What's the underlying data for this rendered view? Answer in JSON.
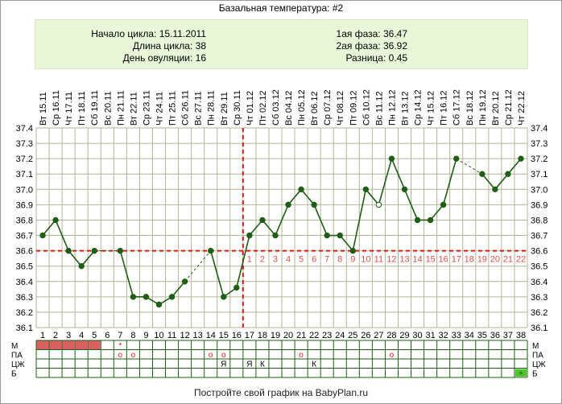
{
  "title": "Базальная температура: #2",
  "info": {
    "cycle_start": "Начало цикла: 15.11.2011",
    "cycle_length": "Длина цикла: 38",
    "ovulation_day": "День овуляции: 16",
    "phase1": "1ая фаза: 36.47",
    "phase2": "2ая фаза: 36.92",
    "difference": "Разница: 0.45"
  },
  "footer": "Постройте свой график на BabyPlan.ru",
  "colors": {
    "line": "#1f5e14",
    "grid": "#b4b49a",
    "marker_line": "#e01818",
    "phase2_days": "#e05050",
    "panel_bg": "#e9f6d8",
    "m_fill": "#d96060",
    "plus_fill": "#4ec42e"
  },
  "chart_data": {
    "type": "line",
    "title": "Базальная температура: #2",
    "days": [
      1,
      2,
      3,
      4,
      5,
      6,
      7,
      8,
      9,
      10,
      11,
      12,
      13,
      14,
      15,
      16,
      17,
      18,
      19,
      20,
      21,
      22,
      23,
      24,
      25,
      26,
      27,
      28,
      29,
      30,
      31,
      32,
      33,
      34,
      35,
      36,
      37,
      38
    ],
    "dates": [
      "15.11",
      "16.11",
      "17.11",
      "18.11",
      "19.11",
      "20.11",
      "21.11",
      "22.11",
      "23.11",
      "24.11",
      "25.11",
      "26.11",
      "27.11",
      "28.11",
      "29.11",
      "30.11",
      "01.12",
      "02.12",
      "03.12",
      "04.12",
      "05.12",
      "06.12",
      "07.12",
      "08.12",
      "09.12",
      "10.12",
      "11.12",
      "12.12",
      "13.12",
      "14.12",
      "15.12",
      "16.12",
      "17.12",
      "18.12",
      "19.12",
      "20.12",
      "21.12",
      "22.12"
    ],
    "weekdays": [
      "Вт",
      "Ср",
      "Чт",
      "Пт",
      "Сб",
      "Вс",
      "Пн",
      "Вт",
      "Ср",
      "Чт",
      "Пт",
      "Сб",
      "Вс",
      "Пн",
      "Вт",
      "Ср",
      "Чт",
      "Пт",
      "Сб",
      "Вс",
      "Пн",
      "Вт",
      "Ср",
      "Чт",
      "Пт",
      "Сб",
      "Вс",
      "Пн",
      "Вт",
      "Ср",
      "Чт",
      "Пт",
      "Сб",
      "Вс",
      "Пн",
      "Вт",
      "Ср",
      "Чт"
    ],
    "temperatures": [
      36.7,
      36.8,
      36.6,
      36.5,
      36.6,
      null,
      36.6,
      36.3,
      36.3,
      36.25,
      36.3,
      36.4,
      null,
      36.6,
      36.3,
      36.36,
      36.7,
      36.8,
      36.7,
      36.9,
      37.0,
      36.9,
      36.7,
      36.7,
      36.6,
      37.0,
      36.9,
      37.2,
      37.0,
      36.8,
      36.8,
      36.9,
      37.2,
      null,
      37.1,
      37.0,
      37.1,
      37.2
    ],
    "hollow_points": [
      27
    ],
    "ylim": [
      36.1,
      37.4
    ],
    "y_ticks": [
      "36.1",
      "36.2",
      "36.3",
      "36.4",
      "36.5",
      "36.6",
      "36.7",
      "36.8",
      "36.9",
      "37.0",
      "37.1",
      "37.2",
      "37.3",
      "37.4"
    ],
    "coverline": 36.6,
    "ovulation_day": 16,
    "phase2_day_labels": [
      "1",
      "2",
      "3",
      "4",
      "5",
      "6",
      "7",
      "8",
      "9",
      "10",
      "11",
      "12",
      "13",
      "14",
      "15",
      "16",
      "17",
      "18",
      "19",
      "20",
      "21",
      "22"
    ],
    "bottom_rows": [
      {
        "label": "М",
        "marks": {
          "1": "fill",
          "2": "fill",
          "3": "fill",
          "4": "fill",
          "5": "fill",
          "7": "*"
        }
      },
      {
        "label": "ПА",
        "marks": {
          "7": "o",
          "8": "o",
          "14": "o",
          "15": "o",
          "21": "o",
          "28": "o"
        }
      },
      {
        "label": "ЦЖ",
        "marks": {
          "15": "Я",
          "17": "Я",
          "18": "К",
          "22": "К"
        }
      },
      {
        "label": "Б",
        "marks": {
          "38": "+"
        }
      }
    ]
  }
}
